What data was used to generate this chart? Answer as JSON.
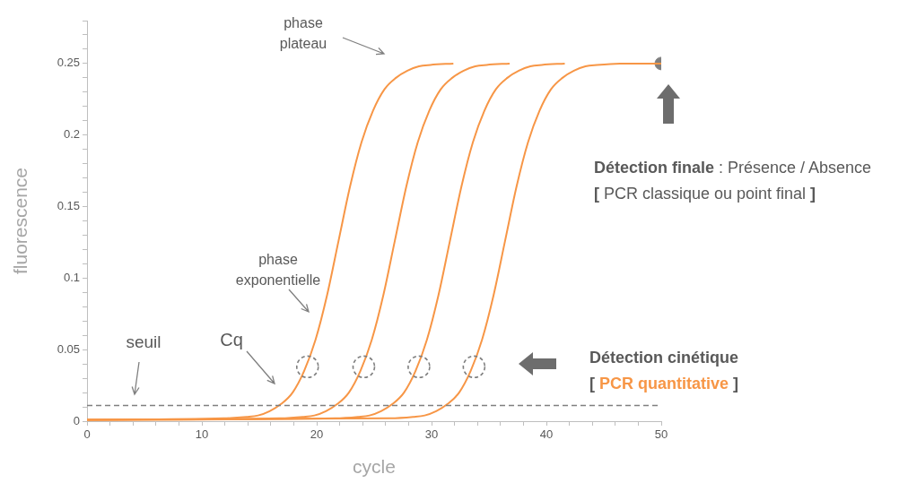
{
  "chart_data": {
    "type": "line",
    "xlabel": "cycle",
    "ylabel": "fluorescence",
    "xlim": [
      0,
      50
    ],
    "ylim": [
      0,
      0.28
    ],
    "xticks": [
      0,
      {
        "value": 2,
        "label": null
      },
      {
        "value": 4,
        "label": null
      },
      {
        "value": 6,
        "label": null
      },
      {
        "value": 8,
        "label": null
      },
      10,
      {
        "value": 12,
        "label": null
      },
      {
        "value": 14,
        "label": null
      },
      {
        "value": 16,
        "label": null
      },
      {
        "value": 18,
        "label": null
      },
      20,
      {
        "value": 22,
        "label": null
      },
      {
        "value": 24,
        "label": null
      },
      {
        "value": 26,
        "label": null
      },
      {
        "value": 28,
        "label": null
      },
      30,
      {
        "value": 32,
        "label": null
      },
      {
        "value": 34,
        "label": null
      },
      {
        "value": 36,
        "label": null
      },
      {
        "value": 38,
        "label": null
      },
      40,
      {
        "value": 42,
        "label": null
      },
      {
        "value": 44,
        "label": null
      },
      {
        "value": 46,
        "label": null
      },
      {
        "value": 48,
        "label": null
      },
      50
    ],
    "yticks": [
      0,
      {
        "value": 0.01,
        "label": null
      },
      {
        "value": 0.02,
        "label": null
      },
      {
        "value": 0.03,
        "label": null
      },
      {
        "value": 0.04,
        "label": null
      },
      0.05,
      {
        "value": 0.06,
        "label": null
      },
      {
        "value": 0.07,
        "label": null
      },
      {
        "value": 0.08,
        "label": null
      },
      {
        "value": 0.09,
        "label": null
      },
      0.1,
      {
        "value": 0.11,
        "label": null
      },
      {
        "value": 0.12,
        "label": null
      },
      {
        "value": 0.13,
        "label": null
      },
      {
        "value": 0.14,
        "label": null
      },
      0.15,
      {
        "value": 0.16,
        "label": null
      },
      {
        "value": 0.17,
        "label": null
      },
      {
        "value": 0.18,
        "label": null
      },
      {
        "value": 0.19,
        "label": null
      },
      0.2,
      {
        "value": 0.21,
        "label": null
      },
      {
        "value": 0.22,
        "label": null
      },
      {
        "value": 0.23,
        "label": null
      },
      {
        "value": 0.24,
        "label": null
      },
      0.25,
      {
        "value": 0.26,
        "label": null
      },
      {
        "value": 0.27,
        "label": null
      },
      {
        "value": 0.28,
        "label": null
      }
    ],
    "grid": false,
    "legend": false,
    "marker": "none",
    "line_style": "solid",
    "series": [
      {
        "color": "#f79646",
        "x": [
          0,
          11.9,
          13.9,
          14.9,
          15.9,
          16.9,
          17.9,
          18.9,
          19.9,
          20.9,
          21.9,
          22.9,
          23.9,
          24.9,
          25.9,
          26.9,
          27.9,
          28.9,
          29.9,
          31.9
        ],
        "values": [
          0.001,
          0.002,
          0.003,
          0.004,
          0.007,
          0.012,
          0.02,
          0.035,
          0.057,
          0.088,
          0.126,
          0.164,
          0.195,
          0.217,
          0.232,
          0.24,
          0.245,
          0.248,
          0.249,
          0.25
        ]
      },
      {
        "color": "#f79646",
        "x": [
          0,
          16.8,
          18.8,
          19.8,
          20.8,
          21.8,
          22.8,
          23.8,
          24.8,
          25.8,
          26.8,
          27.8,
          28.8,
          29.8,
          30.8,
          31.8,
          32.8,
          33.8,
          34.8,
          36.8
        ],
        "values": [
          0.001,
          0.002,
          0.003,
          0.004,
          0.007,
          0.012,
          0.02,
          0.035,
          0.057,
          0.088,
          0.126,
          0.164,
          0.195,
          0.217,
          0.232,
          0.24,
          0.245,
          0.248,
          0.249,
          0.25
        ]
      },
      {
        "color": "#f79646",
        "x": [
          0,
          21.6,
          23.6,
          24.6,
          25.6,
          26.6,
          27.6,
          28.6,
          29.6,
          30.6,
          31.6,
          32.6,
          33.6,
          34.6,
          35.6,
          36.6,
          37.6,
          38.6,
          39.6,
          41.6
        ],
        "values": [
          0.001,
          0.002,
          0.003,
          0.004,
          0.007,
          0.012,
          0.02,
          0.035,
          0.057,
          0.088,
          0.126,
          0.164,
          0.195,
          0.217,
          0.232,
          0.24,
          0.245,
          0.248,
          0.249,
          0.25
        ]
      },
      {
        "color": "#f79646",
        "x": [
          0,
          26.4,
          28.4,
          29.4,
          30.4,
          31.4,
          32.4,
          33.4,
          34.4,
          35.4,
          36.4,
          37.4,
          38.4,
          39.4,
          40.4,
          41.4,
          42.4,
          43.4,
          44.4,
          46.4,
          50
        ],
        "values": [
          0.001,
          0.002,
          0.003,
          0.004,
          0.007,
          0.012,
          0.02,
          0.035,
          0.057,
          0.088,
          0.126,
          0.164,
          0.195,
          0.217,
          0.232,
          0.24,
          0.245,
          0.248,
          0.249,
          0.25,
          0.25
        ]
      },
      {
        "type": "scatter",
        "color": "#7f7f7f",
        "marker": "circle",
        "line_style": "dashed",
        "x": [
          19.2,
          24.1,
          28.9,
          33.7
        ],
        "values": [
          0.038,
          0.038,
          0.038,
          0.038
        ]
      },
      {
        "type": "scatter",
        "color": "#7f7f7f",
        "marker": "circle",
        "x": [
          50
        ],
        "values": [
          0.25
        ]
      }
    ],
    "ref_lines": [
      {
        "axis": "y",
        "value": 0.011,
        "label": "seuil",
        "color": "#7f7f7f",
        "line_style": "dashed"
      }
    ],
    "annotations": [
      "phase plateau",
      "phase exponentielle",
      "Cq",
      "Détection finale : Présence / Absence",
      "[ PCR classique ou point final ]",
      "Détection cinétique",
      "[ PCR quantitative ]"
    ]
  }
}
